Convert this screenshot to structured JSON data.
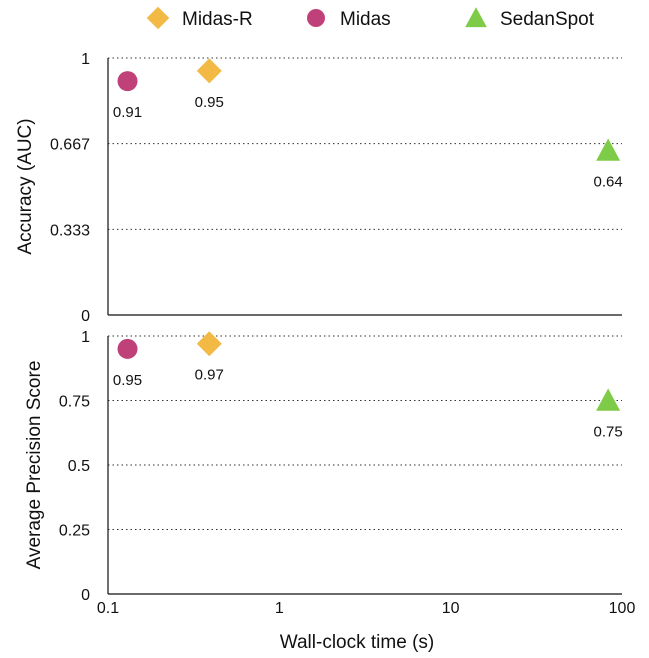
{
  "chart_data": {
    "type": "scatter",
    "xlabel": "Wall-clock time (s)",
    "x_scale": "log",
    "xlim": [
      0.1,
      100
    ],
    "x_ticks": [
      "0.1",
      "1",
      "10",
      "100"
    ],
    "legend_position": "top",
    "legend": [
      {
        "name": "Midas-R",
        "marker": "diamond",
        "color": "#F2BA44"
      },
      {
        "name": "Midas",
        "marker": "circle",
        "color": "#C0417A"
      },
      {
        "name": "SedanSpot",
        "marker": "triangle",
        "color": "#7DCB46"
      }
    ],
    "panels": [
      {
        "ylabel": "Accuracy (AUC)",
        "ylim": [
          0,
          1
        ],
        "y_ticks": [
          {
            "value": 0,
            "label": "0"
          },
          {
            "value": 0.333,
            "label": "0.333"
          },
          {
            "value": 0.667,
            "label": "0.667"
          },
          {
            "value": 1,
            "label": "1"
          }
        ],
        "grid": "dotted",
        "points": [
          {
            "series": "Midas",
            "x": 0.13,
            "y": 0.91,
            "label": "0.91"
          },
          {
            "series": "Midas-R",
            "x": 0.39,
            "y": 0.95,
            "label": "0.95"
          },
          {
            "series": "SedanSpot",
            "x": 83,
            "y": 0.64,
            "label": "0.64"
          }
        ]
      },
      {
        "ylabel": "Average Precision Score",
        "ylim": [
          0,
          1
        ],
        "y_ticks": [
          {
            "value": 0,
            "label": "0"
          },
          {
            "value": 0.25,
            "label": "0.25"
          },
          {
            "value": 0.5,
            "label": "0.5"
          },
          {
            "value": 0.75,
            "label": "0.75"
          },
          {
            "value": 1,
            "label": "1"
          }
        ],
        "grid": "dotted",
        "points": [
          {
            "series": "Midas",
            "x": 0.13,
            "y": 0.95,
            "label": "0.95"
          },
          {
            "series": "Midas-R",
            "x": 0.39,
            "y": 0.97,
            "label": "0.97"
          },
          {
            "series": "SedanSpot",
            "x": 83,
            "y": 0.75,
            "label": "0.75"
          }
        ]
      }
    ]
  }
}
